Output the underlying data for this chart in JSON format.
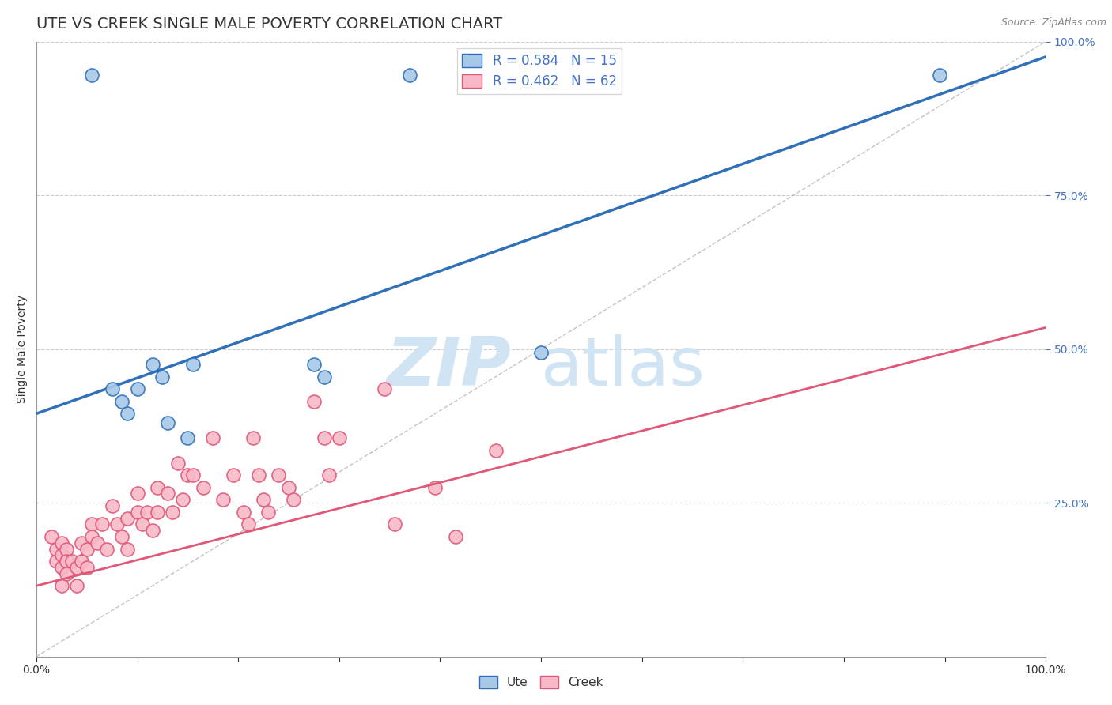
{
  "title": "UTE VS CREEK SINGLE MALE POVERTY CORRELATION CHART",
  "source_text": "Source: ZipAtlas.com",
  "ylabel": "Single Male Poverty",
  "xlim": [
    0,
    1
  ],
  "ylim": [
    0,
    1
  ],
  "xtick_labels": [
    "0.0%",
    "100.0%"
  ],
  "ytick_labels": [
    "25.0%",
    "50.0%",
    "75.0%",
    "100.0%"
  ],
  "ytick_positions": [
    0.25,
    0.5,
    0.75,
    1.0
  ],
  "xtick_positions": [
    0.0,
    0.1,
    0.2,
    0.3,
    0.4,
    0.5,
    0.6,
    0.7,
    0.8,
    0.9,
    1.0
  ],
  "legend_r_ute": "R = 0.584",
  "legend_n_ute": "N = 15",
  "legend_r_creek": "R = 0.462",
  "legend_n_creek": "N = 62",
  "ute_color": "#a8c8e8",
  "creek_color": "#f8b8c8",
  "ute_line_color": "#3070b8",
  "creek_line_color": "#e05878",
  "watermark_zip": "ZIP",
  "watermark_atlas": "atlas",
  "watermark_color": "#d0e4f4",
  "ute_points": [
    [
      0.055,
      0.945
    ],
    [
      0.37,
      0.945
    ],
    [
      0.075,
      0.435
    ],
    [
      0.085,
      0.415
    ],
    [
      0.09,
      0.395
    ],
    [
      0.1,
      0.435
    ],
    [
      0.115,
      0.475
    ],
    [
      0.125,
      0.455
    ],
    [
      0.13,
      0.38
    ],
    [
      0.15,
      0.355
    ],
    [
      0.155,
      0.475
    ],
    [
      0.275,
      0.475
    ],
    [
      0.285,
      0.455
    ],
    [
      0.5,
      0.495
    ],
    [
      0.895,
      0.945
    ]
  ],
  "creek_points": [
    [
      0.015,
      0.195
    ],
    [
      0.02,
      0.175
    ],
    [
      0.02,
      0.155
    ],
    [
      0.025,
      0.185
    ],
    [
      0.025,
      0.165
    ],
    [
      0.025,
      0.145
    ],
    [
      0.025,
      0.115
    ],
    [
      0.03,
      0.175
    ],
    [
      0.03,
      0.155
    ],
    [
      0.03,
      0.135
    ],
    [
      0.035,
      0.155
    ],
    [
      0.04,
      0.145
    ],
    [
      0.04,
      0.115
    ],
    [
      0.045,
      0.185
    ],
    [
      0.045,
      0.155
    ],
    [
      0.05,
      0.175
    ],
    [
      0.05,
      0.145
    ],
    [
      0.055,
      0.215
    ],
    [
      0.055,
      0.195
    ],
    [
      0.06,
      0.185
    ],
    [
      0.065,
      0.215
    ],
    [
      0.07,
      0.175
    ],
    [
      0.075,
      0.245
    ],
    [
      0.08,
      0.215
    ],
    [
      0.085,
      0.195
    ],
    [
      0.09,
      0.225
    ],
    [
      0.09,
      0.175
    ],
    [
      0.1,
      0.265
    ],
    [
      0.1,
      0.235
    ],
    [
      0.105,
      0.215
    ],
    [
      0.11,
      0.235
    ],
    [
      0.115,
      0.205
    ],
    [
      0.12,
      0.275
    ],
    [
      0.12,
      0.235
    ],
    [
      0.13,
      0.265
    ],
    [
      0.135,
      0.235
    ],
    [
      0.14,
      0.315
    ],
    [
      0.145,
      0.255
    ],
    [
      0.15,
      0.295
    ],
    [
      0.155,
      0.295
    ],
    [
      0.165,
      0.275
    ],
    [
      0.175,
      0.355
    ],
    [
      0.185,
      0.255
    ],
    [
      0.195,
      0.295
    ],
    [
      0.205,
      0.235
    ],
    [
      0.21,
      0.215
    ],
    [
      0.215,
      0.355
    ],
    [
      0.22,
      0.295
    ],
    [
      0.225,
      0.255
    ],
    [
      0.23,
      0.235
    ],
    [
      0.24,
      0.295
    ],
    [
      0.25,
      0.275
    ],
    [
      0.255,
      0.255
    ],
    [
      0.275,
      0.415
    ],
    [
      0.285,
      0.355
    ],
    [
      0.29,
      0.295
    ],
    [
      0.3,
      0.355
    ],
    [
      0.345,
      0.435
    ],
    [
      0.355,
      0.215
    ],
    [
      0.395,
      0.275
    ],
    [
      0.415,
      0.195
    ],
    [
      0.455,
      0.335
    ]
  ],
  "ute_line_x": [
    0.0,
    1.0
  ],
  "ute_line_y": [
    0.395,
    0.975
  ],
  "creek_line_x": [
    0.0,
    1.0
  ],
  "creek_line_y": [
    0.115,
    0.535
  ],
  "diag_line_x": [
    0.0,
    1.0
  ],
  "diag_line_y": [
    0.0,
    1.0
  ],
  "grid_color": "#cccccc",
  "background_color": "#ffffff",
  "title_fontsize": 14,
  "axis_label_fontsize": 10,
  "tick_fontsize": 10,
  "legend_fontsize": 12
}
